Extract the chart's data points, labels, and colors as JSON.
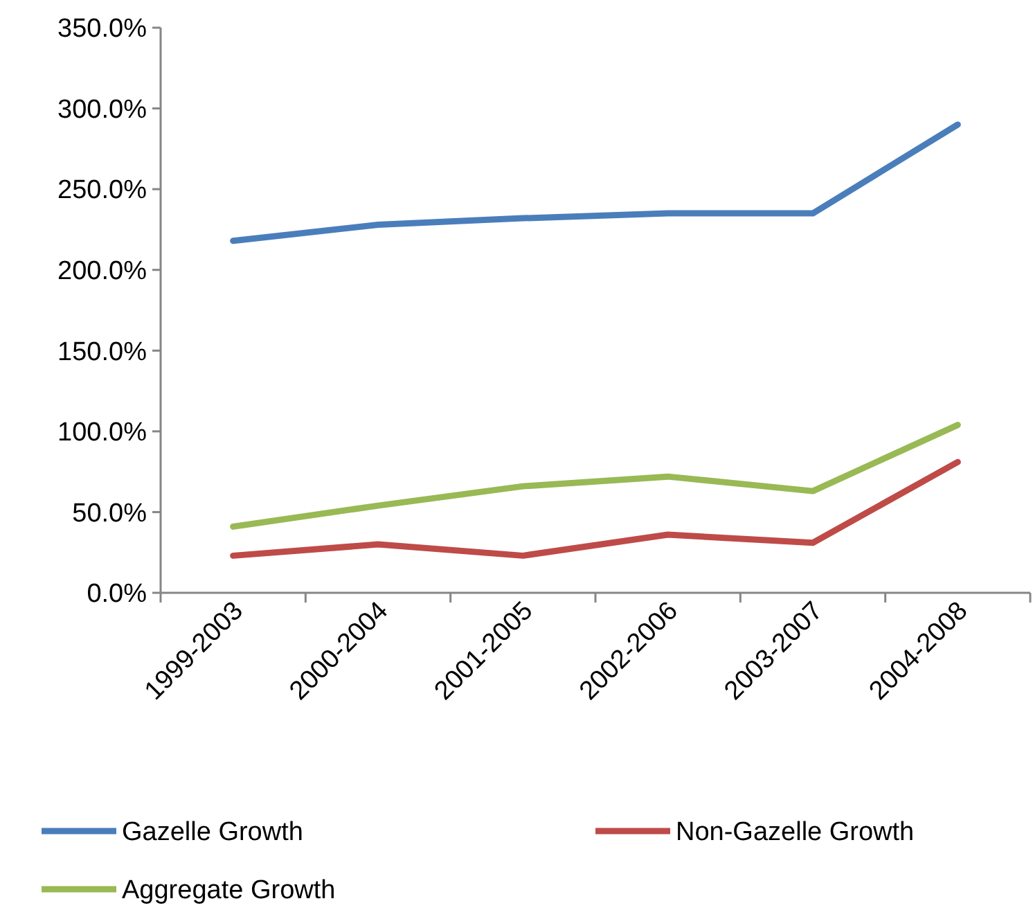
{
  "chart_data": {
    "type": "line",
    "categories": [
      "1999-2003",
      "2000-2004",
      "2001-2005",
      "2002-2006",
      "2003-2007",
      "2004-2008"
    ],
    "series": [
      {
        "name": "Gazelle Growth",
        "color": "#4a7ebb",
        "values": [
          218,
          228,
          232,
          235,
          235,
          290
        ]
      },
      {
        "name": "Non-Gazelle Growth",
        "color": "#be4b48",
        "values": [
          23,
          30,
          23,
          36,
          31,
          81
        ]
      },
      {
        "name": "Aggregate Growth",
        "color": "#98b954",
        "values": [
          41,
          54,
          66,
          72,
          63,
          104
        ]
      }
    ],
    "ylim": [
      0,
      350
    ],
    "yticks": [
      {
        "value": 0,
        "label": "0.0%"
      },
      {
        "value": 50,
        "label": "50.0%"
      },
      {
        "value": 100,
        "label": "100.0%"
      },
      {
        "value": 150,
        "label": "150.0%"
      },
      {
        "value": 200,
        "label": "200.0%"
      },
      {
        "value": 250,
        "label": "250.0%"
      },
      {
        "value": 300,
        "label": "300.0%"
      },
      {
        "value": 350,
        "label": "350.0%"
      }
    ],
    "legend": "bottom",
    "marker": "none",
    "line_style": "solid"
  }
}
